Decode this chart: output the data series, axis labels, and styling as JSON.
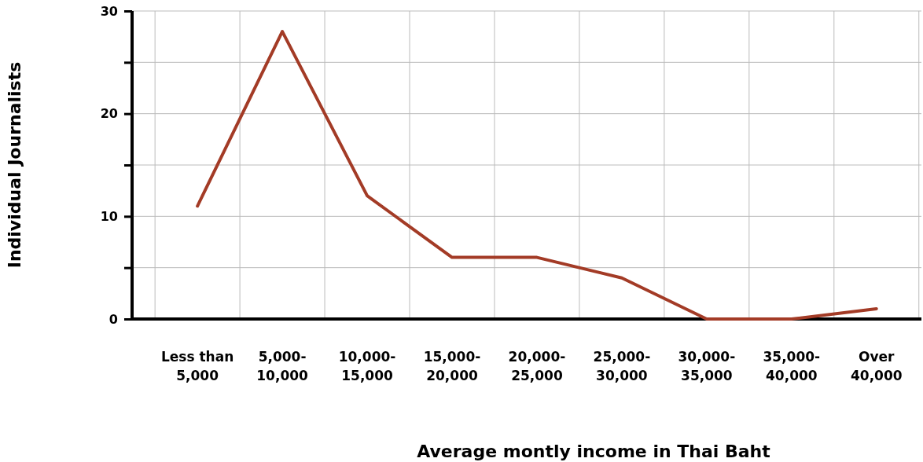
{
  "chart_data": {
    "type": "line",
    "xlabel": "Average montly income in Thai Baht",
    "ylabel": "Individual Journalists",
    "categories": [
      "Less than 5,000",
      "5,000-10,000",
      "10,000-15,000",
      "15,000-20,000",
      "20,000-25,000",
      "25,000-30,000",
      "30,000-35,000",
      "35,000-40,000",
      "Over 40,000"
    ],
    "series": [
      {
        "color": "#a33b26",
        "values": [
          11,
          28,
          12,
          6,
          6,
          4,
          0,
          0,
          1
        ]
      }
    ],
    "ylim": [
      0,
      30
    ],
    "yticks": [
      0,
      {
        "value": 5,
        "label": null
      },
      10,
      {
        "value": 15,
        "label": null
      },
      20,
      {
        "value": 25,
        "label": null
      },
      30
    ],
    "grid": true,
    "marker": "none",
    "line_style": "solid"
  }
}
